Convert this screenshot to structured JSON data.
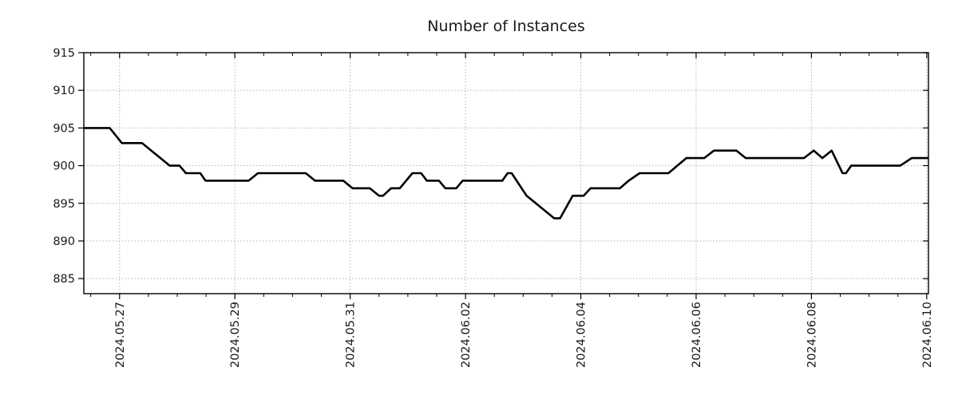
{
  "chart_data": {
    "type": "line",
    "title": "Number of Instances",
    "xlabel": "",
    "ylabel": "",
    "grid": true,
    "legend": "none",
    "x_unit": "days relative to first major tick (2024.05.27)",
    "xlim": [
      -0.62,
      14.03
    ],
    "ylim": [
      883,
      915
    ],
    "y_ticks": [
      {
        "v": 885,
        "label": "885"
      },
      {
        "v": 890,
        "label": "890"
      },
      {
        "v": 895,
        "label": "895"
      },
      {
        "v": 900,
        "label": "900"
      },
      {
        "v": 905,
        "label": "905"
      },
      {
        "v": 910,
        "label": "910"
      },
      {
        "v": 915,
        "label": "915"
      }
    ],
    "x_ticks": [
      {
        "d": 0,
        "label": "2024.05.27"
      },
      {
        "d": 2,
        "label": "2024.05.29"
      },
      {
        "d": 4,
        "label": "2024.05.31"
      },
      {
        "d": 6,
        "label": "2024.06.02"
      },
      {
        "d": 8,
        "label": "2024.06.04"
      },
      {
        "d": 10,
        "label": "2024.06.06"
      },
      {
        "d": 12,
        "label": "2024.06.08"
      },
      {
        "d": 14,
        "label": "2024.06.10"
      }
    ],
    "x_minor_ticks": {
      "start": -0.5,
      "end": 13.5,
      "step": 0.5
    },
    "series": [
      {
        "name": "Number of Instances",
        "points": [
          [
            -0.62,
            905
          ],
          [
            -0.17,
            905
          ],
          [
            0.04,
            903
          ],
          [
            0.39,
            903
          ],
          [
            0.87,
            900
          ],
          [
            1.04,
            900
          ],
          [
            1.15,
            899
          ],
          [
            1.4,
            899
          ],
          [
            1.49,
            898
          ],
          [
            2.24,
            898
          ],
          [
            2.4,
            899
          ],
          [
            3.23,
            899
          ],
          [
            3.39,
            898
          ],
          [
            3.88,
            898
          ],
          [
            4.04,
            897
          ],
          [
            4.34,
            897
          ],
          [
            4.5,
            896
          ],
          [
            4.57,
            896
          ],
          [
            4.71,
            897
          ],
          [
            4.86,
            897
          ],
          [
            5.08,
            899
          ],
          [
            5.23,
            899
          ],
          [
            5.33,
            898
          ],
          [
            5.54,
            898
          ],
          [
            5.65,
            897
          ],
          [
            5.84,
            897
          ],
          [
            5.95,
            898
          ],
          [
            6.64,
            898
          ],
          [
            6.73,
            899
          ],
          [
            6.8,
            899
          ],
          [
            7.06,
            896
          ],
          [
            7.22,
            895
          ],
          [
            7.54,
            893
          ],
          [
            7.64,
            893
          ],
          [
            7.86,
            896
          ],
          [
            8.05,
            896
          ],
          [
            8.17,
            897
          ],
          [
            8.68,
            897
          ],
          [
            8.83,
            898
          ],
          [
            9.02,
            899
          ],
          [
            9.52,
            899
          ],
          [
            9.83,
            901
          ],
          [
            10.14,
            901
          ],
          [
            10.31,
            902
          ],
          [
            10.7,
            902
          ],
          [
            10.86,
            901
          ],
          [
            11.87,
            901
          ],
          [
            12.04,
            902
          ],
          [
            12.19,
            901
          ],
          [
            12.35,
            902
          ],
          [
            12.54,
            899
          ],
          [
            12.6,
            899
          ],
          [
            12.69,
            900
          ],
          [
            13.54,
            900
          ],
          [
            13.74,
            901
          ],
          [
            14.03,
            901
          ]
        ]
      }
    ],
    "colors": {
      "line": "#000000",
      "grid": "#b2b2b2",
      "frame": "#000000",
      "text": "#1a1a1a",
      "background": "#ffffff"
    }
  }
}
